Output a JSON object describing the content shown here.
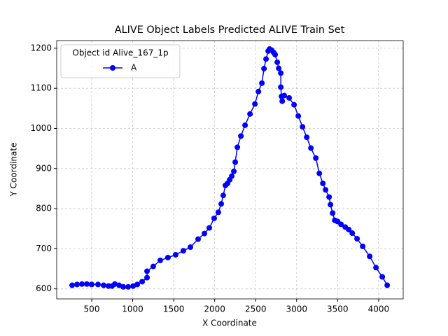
{
  "chart_data": {
    "type": "line",
    "title": "ALIVE Object Labels Predicted ALIVE Train Set",
    "x_label": "X Coordinate",
    "y_label": "Y Coordinate",
    "legend_title": "Object id Alive_167_1p",
    "legend_position": "upper left",
    "grid": true,
    "xlim": [
      73,
      4300
    ],
    "ylim": [
      575,
      1219
    ],
    "xticks": [
      500,
      1000,
      1500,
      2000,
      2500,
      3000,
      3500,
      4000
    ],
    "yticks": [
      600,
      700,
      800,
      900,
      1000,
      1100,
      1200
    ],
    "series": [
      {
        "name": "A",
        "color": "#0000ff",
        "marker": "o",
        "x": [
          261,
          321,
          381,
          441,
          500,
          577,
          645,
          705,
          748,
          782,
          834,
          885,
          945,
          1005,
          1056,
          1115,
          1175,
          1175,
          1251,
          1336,
          1430,
          1524,
          1618,
          1704,
          1798,
          1875,
          1935,
          1994,
          2045,
          2080,
          2105,
          2131,
          2157,
          2183,
          2208,
          2234,
          2251,
          2277,
          2320,
          2371,
          2431,
          2491,
          2534,
          2576,
          2602,
          2627,
          2653,
          2670,
          2696,
          2721,
          2738,
          2764,
          2781,
          2807,
          2807,
          2815,
          2824,
          2849,
          2909,
          2969,
          3020,
          3072,
          3123,
          3174,
          3234,
          3277,
          3320,
          3353,
          3396,
          3413,
          3439,
          3465,
          3499,
          3541,
          3593,
          3635,
          3678,
          3737,
          3806,
          3891,
          3968,
          4045,
          4105
        ],
        "values": [
          609,
          611,
          612,
          612,
          611,
          611,
          609,
          607,
          607,
          612,
          609,
          605,
          605,
          607,
          611,
          618,
          628,
          644,
          656,
          671,
          678,
          685,
          695,
          704,
          724,
          738,
          752,
          776,
          791,
          812,
          833,
          858,
          863,
          872,
          881,
          893,
          916,
          953,
          981,
          1008,
          1036,
          1061,
          1092,
          1113,
          1149,
          1173,
          1193,
          1198,
          1195,
          1189,
          1184,
          1165,
          1150,
          1138,
          1103,
          1080,
          1068,
          1082,
          1076,
          1059,
          1031,
          1004,
          978,
          951,
          926,
          888,
          863,
          847,
          829,
          810,
          789,
          771,
          768,
          761,
          754,
          748,
          739,
          725,
          706,
          681,
          653,
          630,
          609
        ]
      }
    ]
  }
}
